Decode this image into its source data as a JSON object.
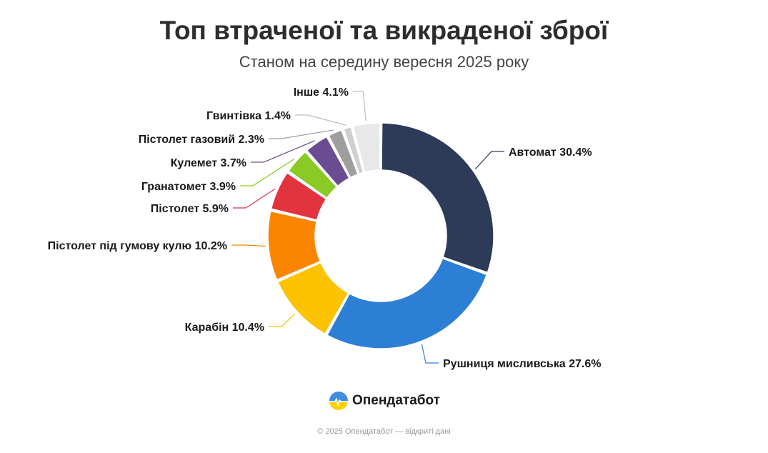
{
  "header": {
    "title": "Топ втраченої та викраденої зброї",
    "subtitle": "Станом на середину вересня 2025 року"
  },
  "brand": {
    "name": "Опендатабот"
  },
  "footer": {
    "text": "© 2025 Опендатабот — відкриті дані"
  },
  "chart_data": {
    "type": "pie",
    "variant": "donut",
    "title": "Топ втраченої та викраденої зброї",
    "subtitle": "Станом на середину вересня 2025 року",
    "unit": "%",
    "slices": [
      {
        "label": "Автомат",
        "value": 30.4,
        "display": "Автомат 30.4%",
        "color": "#2d3b59"
      },
      {
        "label": "Рушниця мисливська",
        "value": 27.6,
        "display": "Рушниця мисливська 27.6%",
        "color": "#2d7fd6"
      },
      {
        "label": "Карабін",
        "value": 10.4,
        "display": "Карабін 10.4%",
        "color": "#fdc200"
      },
      {
        "label": "Пістолет під гумову кулю",
        "value": 10.2,
        "display": "Пістолет під гумову кулю 10.2%",
        "color": "#fb8500"
      },
      {
        "label": "Пістолет",
        "value": 5.9,
        "display": "Пістолет 5.9%",
        "color": "#e2333f"
      },
      {
        "label": "Гранатомет",
        "value": 3.9,
        "display": "Гранатомет 3.9%",
        "color": "#8ac926"
      },
      {
        "label": "Кулемет",
        "value": 3.7,
        "display": "Кулемет 3.7%",
        "color": "#6a4c93"
      },
      {
        "label": "Пістолет газовий",
        "value": 2.3,
        "display": "Пістолет газовий 2.3%",
        "color": "#9e9e9e"
      },
      {
        "label": "Гвинтівка",
        "value": 1.4,
        "display": "Гвинтівка 1.4%",
        "color": "#cfcfcf"
      },
      {
        "label": "Інше",
        "value": 4.1,
        "display": "Інше 4.1%",
        "color": "#e8e8e8"
      }
    ]
  }
}
